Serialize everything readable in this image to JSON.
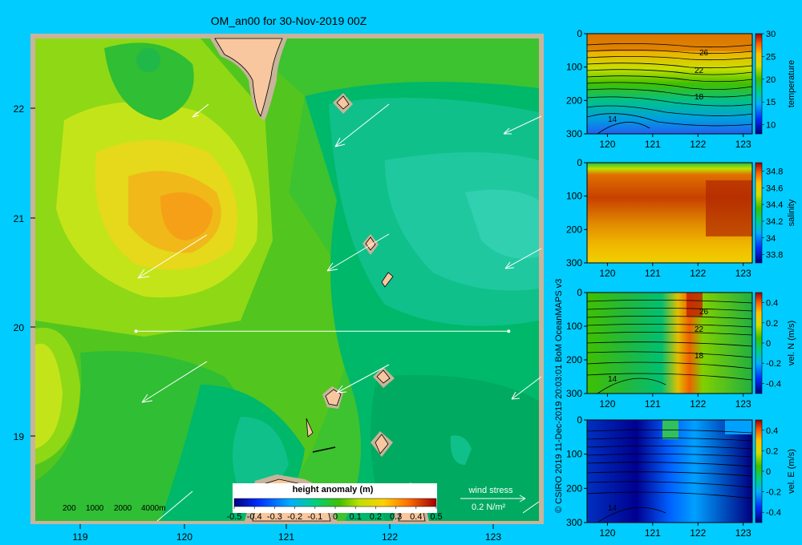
{
  "title": "OM_an00 for 30-Nov-2019 00Z",
  "credit": "© CSIRO 2019   11-Dec-2019 20:03:01  BoM OceanMAPS v3",
  "colors": {
    "background": "#00ccff",
    "land": "#f8c79f",
    "shelf": "#c8b49a"
  },
  "map": {
    "lon_ticks": [
      "119",
      "120",
      "121",
      "122",
      "123"
    ],
    "lat_ticks": [
      "22",
      "21",
      "20",
      "19"
    ],
    "lon_range": [
      118.5,
      123.5
    ],
    "lat_range": [
      18.25,
      22.7
    ],
    "section_line": {
      "lat": 20.0,
      "lon_start": 119.5,
      "lon_end": 123.2
    },
    "depth_legend": [
      "200",
      "1000",
      "2000",
      "4000m"
    ],
    "colorbar": {
      "label": "height anomaly  (m)",
      "ticks": [
        "-0.5",
        "-0.4",
        "-0.3",
        "-0.2",
        "-0.1",
        "0",
        "0.1",
        "0.2",
        "0.3",
        "0.4",
        "0.5"
      ]
    },
    "wind": {
      "label": "wind stress",
      "scale_label": "0.2 N/m²"
    }
  },
  "chart_data": [
    {
      "type": "heatmap",
      "title": "OM_an00 for 30-Nov-2019 00Z",
      "xlabel": "",
      "ylabel": "",
      "x_range": [
        118.5,
        123.5
      ],
      "y_range": [
        18.25,
        22.7
      ],
      "variable": "height anomaly (m)",
      "clim": [
        -0.5,
        0.5
      ],
      "anomaly_max": {
        "lon": 120.0,
        "lat": 21.05,
        "value": 0.3
      }
    },
    {
      "type": "heatmap",
      "variable": "temperature",
      "x_ticks": [
        "120",
        "121",
        "122",
        "123"
      ],
      "y_ticks": [
        "0",
        "100",
        "200",
        "300"
      ],
      "cbar_ticks": [
        "30",
        "25",
        "20",
        "15",
        "10"
      ],
      "contour_labels": [
        "26",
        "22",
        "18",
        "14"
      ],
      "clim": [
        8,
        30
      ]
    },
    {
      "type": "heatmap",
      "variable": "salinity",
      "x_ticks": [
        "120",
        "121",
        "122",
        "123"
      ],
      "y_ticks": [
        "0",
        "100",
        "200",
        "300"
      ],
      "cbar_ticks": [
        "34.8",
        "34.6",
        "34.4",
        "34.2",
        "34",
        "33.8"
      ],
      "clim": [
        33.7,
        34.9
      ]
    },
    {
      "type": "heatmap",
      "variable": "vel. N (m/s)",
      "x_ticks": [
        "120",
        "121",
        "122",
        "123"
      ],
      "y_ticks": [
        "0",
        "100",
        "200",
        "300"
      ],
      "cbar_ticks": [
        "0.4",
        "0.2",
        "0",
        "-0.2",
        "-0.4"
      ],
      "contour_labels": [
        "26",
        "22",
        "18",
        "14"
      ],
      "clim": [
        -0.5,
        0.5
      ]
    },
    {
      "type": "heatmap",
      "variable": "vel. E (m/s)",
      "x_ticks": [
        "120",
        "121",
        "122",
        "123"
      ],
      "y_ticks": [
        "0",
        "100",
        "200",
        "300"
      ],
      "cbar_ticks": [
        "0.4",
        "0.2",
        "0",
        "-0.2",
        "-0.4"
      ],
      "contour_labels": [
        "14"
      ],
      "clim": [
        -0.5,
        0.5
      ]
    }
  ],
  "panels": [
    {
      "label": "temperature"
    },
    {
      "label": "salinity"
    },
    {
      "label": "vel. N  (m/s)"
    },
    {
      "label": "vel. E  (m/s)"
    }
  ]
}
